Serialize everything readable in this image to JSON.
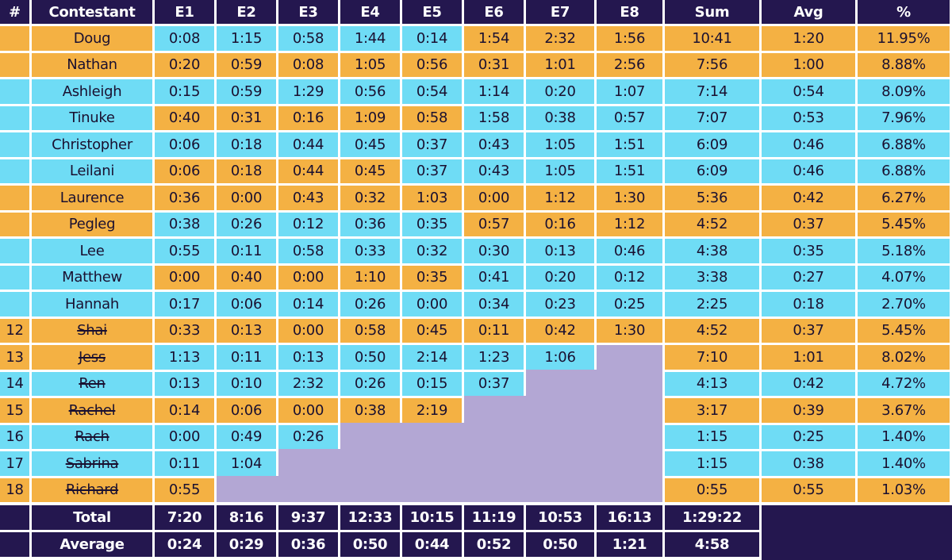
{
  "colors": {
    "header": "#24174f",
    "orange": "#f4b143",
    "blue": "#6fdcf5",
    "eliminated": "#b3a7d4"
  },
  "headers": [
    "#",
    "Contestant",
    "E1",
    "E2",
    "E3",
    "E4",
    "E5",
    "E6",
    "E7",
    "E8",
    "Sum",
    "Avg",
    "%"
  ],
  "rows": [
    {
      "rank": "",
      "name": "Doug",
      "eliminated": false,
      "bg": "orange",
      "cells": [
        [
          "0:08",
          "blue"
        ],
        [
          "1:15",
          "blue"
        ],
        [
          "0:58",
          "blue"
        ],
        [
          "1:44",
          "blue"
        ],
        [
          "0:14",
          "blue"
        ],
        [
          "1:54",
          "orange"
        ],
        [
          "2:32",
          "orange"
        ],
        [
          "1:56",
          "orange"
        ]
      ],
      "sum": "10:41",
      "avg": "1:20",
      "pct": "11.95%"
    },
    {
      "rank": "",
      "name": "Nathan",
      "eliminated": false,
      "bg": "orange",
      "cells": [
        [
          "0:20",
          "orange"
        ],
        [
          "0:59",
          "orange"
        ],
        [
          "0:08",
          "orange"
        ],
        [
          "1:05",
          "orange"
        ],
        [
          "0:56",
          "orange"
        ],
        [
          "0:31",
          "orange"
        ],
        [
          "1:01",
          "orange"
        ],
        [
          "2:56",
          "orange"
        ]
      ],
      "sum": "7:56",
      "avg": "1:00",
      "pct": "8.88%"
    },
    {
      "rank": "",
      "name": "Ashleigh",
      "eliminated": false,
      "bg": "blue",
      "cells": [
        [
          "0:15",
          "blue"
        ],
        [
          "0:59",
          "blue"
        ],
        [
          "1:29",
          "blue"
        ],
        [
          "0:56",
          "blue"
        ],
        [
          "0:54",
          "blue"
        ],
        [
          "1:14",
          "blue"
        ],
        [
          "0:20",
          "blue"
        ],
        [
          "1:07",
          "blue"
        ]
      ],
      "sum": "7:14",
      "avg": "0:54",
      "pct": "8.09%"
    },
    {
      "rank": "",
      "name": "Tinuke",
      "eliminated": false,
      "bg": "blue",
      "cells": [
        [
          "0:40",
          "orange"
        ],
        [
          "0:31",
          "orange"
        ],
        [
          "0:16",
          "orange"
        ],
        [
          "1:09",
          "orange"
        ],
        [
          "0:58",
          "orange"
        ],
        [
          "1:58",
          "blue"
        ],
        [
          "0:38",
          "blue"
        ],
        [
          "0:57",
          "blue"
        ]
      ],
      "sum": "7:07",
      "avg": "0:53",
      "pct": "7.96%"
    },
    {
      "rank": "",
      "name": "Christopher",
      "eliminated": false,
      "bg": "blue",
      "cells": [
        [
          "0:06",
          "blue"
        ],
        [
          "0:18",
          "blue"
        ],
        [
          "0:44",
          "blue"
        ],
        [
          "0:45",
          "blue"
        ],
        [
          "0:37",
          "blue"
        ],
        [
          "0:43",
          "blue"
        ],
        [
          "1:05",
          "blue"
        ],
        [
          "1:51",
          "blue"
        ]
      ],
      "sum": "6:09",
      "avg": "0:46",
      "pct": "6.88%"
    },
    {
      "rank": "",
      "name": "Leilani",
      "eliminated": false,
      "bg": "blue",
      "cells": [
        [
          "0:06",
          "orange"
        ],
        [
          "0:18",
          "orange"
        ],
        [
          "0:44",
          "orange"
        ],
        [
          "0:45",
          "orange"
        ],
        [
          "0:37",
          "blue"
        ],
        [
          "0:43",
          "blue"
        ],
        [
          "1:05",
          "blue"
        ],
        [
          "1:51",
          "blue"
        ]
      ],
      "sum": "6:09",
      "avg": "0:46",
      "pct": "6.88%"
    },
    {
      "rank": "",
      "name": "Laurence",
      "eliminated": false,
      "bg": "orange",
      "cells": [
        [
          "0:36",
          "orange"
        ],
        [
          "0:00",
          "orange"
        ],
        [
          "0:43",
          "orange"
        ],
        [
          "0:32",
          "orange"
        ],
        [
          "1:03",
          "orange"
        ],
        [
          "0:00",
          "orange"
        ],
        [
          "1:12",
          "orange"
        ],
        [
          "1:30",
          "orange"
        ]
      ],
      "sum": "5:36",
      "avg": "0:42",
      "pct": "6.27%"
    },
    {
      "rank": "",
      "name": "Pegleg",
      "eliminated": false,
      "bg": "orange",
      "cells": [
        [
          "0:38",
          "blue"
        ],
        [
          "0:26",
          "blue"
        ],
        [
          "0:12",
          "blue"
        ],
        [
          "0:36",
          "blue"
        ],
        [
          "0:35",
          "blue"
        ],
        [
          "0:57",
          "orange"
        ],
        [
          "0:16",
          "orange"
        ],
        [
          "1:12",
          "orange"
        ]
      ],
      "sum": "4:52",
      "avg": "0:37",
      "pct": "5.45%"
    },
    {
      "rank": "",
      "name": "Lee",
      "eliminated": false,
      "bg": "blue",
      "cells": [
        [
          "0:55",
          "blue"
        ],
        [
          "0:11",
          "blue"
        ],
        [
          "0:58",
          "blue"
        ],
        [
          "0:33",
          "blue"
        ],
        [
          "0:32",
          "blue"
        ],
        [
          "0:30",
          "blue"
        ],
        [
          "0:13",
          "blue"
        ],
        [
          "0:46",
          "blue"
        ]
      ],
      "sum": "4:38",
      "avg": "0:35",
      "pct": "5.18%"
    },
    {
      "rank": "",
      "name": "Matthew",
      "eliminated": false,
      "bg": "blue",
      "cells": [
        [
          "0:00",
          "orange"
        ],
        [
          "0:40",
          "orange"
        ],
        [
          "0:00",
          "orange"
        ],
        [
          "1:10",
          "orange"
        ],
        [
          "0:35",
          "orange"
        ],
        [
          "0:41",
          "blue"
        ],
        [
          "0:20",
          "blue"
        ],
        [
          "0:12",
          "blue"
        ]
      ],
      "sum": "3:38",
      "avg": "0:27",
      "pct": "4.07%"
    },
    {
      "rank": "",
      "name": "Hannah",
      "eliminated": false,
      "bg": "blue",
      "cells": [
        [
          "0:17",
          "blue"
        ],
        [
          "0:06",
          "blue"
        ],
        [
          "0:14",
          "blue"
        ],
        [
          "0:26",
          "blue"
        ],
        [
          "0:00",
          "blue"
        ],
        [
          "0:34",
          "blue"
        ],
        [
          "0:23",
          "blue"
        ],
        [
          "0:25",
          "blue"
        ]
      ],
      "sum": "2:25",
      "avg": "0:18",
      "pct": "2.70%"
    },
    {
      "rank": "12",
      "name": "Shai",
      "eliminated": true,
      "bg": "orange",
      "cells": [
        [
          "0:33",
          "orange"
        ],
        [
          "0:13",
          "orange"
        ],
        [
          "0:00",
          "orange"
        ],
        [
          "0:58",
          "orange"
        ],
        [
          "0:45",
          "orange"
        ],
        [
          "0:11",
          "orange"
        ],
        [
          "0:42",
          "orange"
        ],
        [
          "1:30",
          "orange"
        ]
      ],
      "sum": "4:52",
      "avg": "0:37",
      "pct": "5.45%"
    },
    {
      "rank": "13",
      "name": "Jess",
      "eliminated": true,
      "bg": "orange",
      "cells": [
        [
          "1:13",
          "blue"
        ],
        [
          "0:11",
          "blue"
        ],
        [
          "0:13",
          "blue"
        ],
        [
          "0:50",
          "blue"
        ],
        [
          "2:14",
          "blue"
        ],
        [
          "1:23",
          "blue"
        ],
        [
          "1:06",
          "blue"
        ]
      ],
      "sum": "7:10",
      "avg": "1:01",
      "pct": "8.02%"
    },
    {
      "rank": "14",
      "name": "Ren",
      "eliminated": true,
      "bg": "blue",
      "cells": [
        [
          "0:13",
          "blue"
        ],
        [
          "0:10",
          "blue"
        ],
        [
          "2:32",
          "blue"
        ],
        [
          "0:26",
          "blue"
        ],
        [
          "0:15",
          "blue"
        ],
        [
          "0:37",
          "blue"
        ]
      ],
      "sum": "4:13",
      "avg": "0:42",
      "pct": "4.72%"
    },
    {
      "rank": "15",
      "name": "Rachel",
      "eliminated": true,
      "bg": "orange",
      "cells": [
        [
          "0:14",
          "orange"
        ],
        [
          "0:06",
          "orange"
        ],
        [
          "0:00",
          "orange"
        ],
        [
          "0:38",
          "orange"
        ],
        [
          "2:19",
          "orange"
        ]
      ],
      "sum": "3:17",
      "avg": "0:39",
      "pct": "3.67%"
    },
    {
      "rank": "16",
      "name": "Rach",
      "eliminated": true,
      "bg": "blue",
      "cells": [
        [
          "0:00",
          "blue"
        ],
        [
          "0:49",
          "blue"
        ],
        [
          "0:26",
          "blue"
        ]
      ],
      "sum": "1:15",
      "avg": "0:25",
      "pct": "1.40%"
    },
    {
      "rank": "17",
      "name": "Sabrina",
      "eliminated": true,
      "bg": "blue",
      "cells": [
        [
          "0:11",
          "blue"
        ],
        [
          "1:04",
          "blue"
        ]
      ],
      "sum": "1:15",
      "avg": "0:38",
      "pct": "1.40%"
    },
    {
      "rank": "18",
      "name": "Richard",
      "eliminated": true,
      "bg": "orange",
      "cells": [
        [
          "0:55",
          "orange"
        ]
      ],
      "sum": "0:55",
      "avg": "0:55",
      "pct": "1.03%"
    }
  ],
  "footer": [
    {
      "label": "Total",
      "values": [
        "7:20",
        "8:16",
        "9:37",
        "12:33",
        "10:15",
        "11:19",
        "10:53",
        "16:13"
      ],
      "sum": "1:29:22"
    },
    {
      "label": "Average",
      "values": [
        "0:24",
        "0:29",
        "0:36",
        "0:50",
        "0:44",
        "0:52",
        "0:50",
        "1:21"
      ],
      "sum": "4:58"
    }
  ]
}
